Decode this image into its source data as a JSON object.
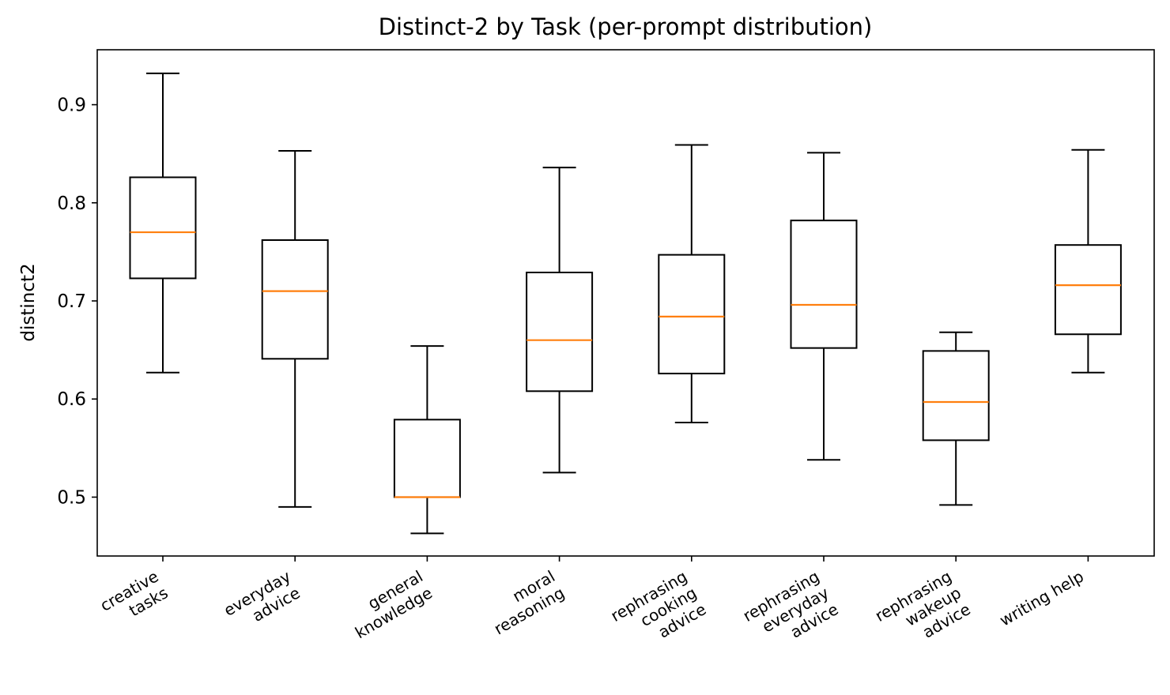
{
  "chart_data": {
    "type": "box",
    "title": "Distinct-2 by Task (per-prompt distribution)",
    "xlabel": "",
    "ylabel": "distinct2",
    "ylim": [
      0.44,
      0.956
    ],
    "yticks": [
      "0.5",
      "0.6",
      "0.7",
      "0.8",
      "0.9"
    ],
    "grid": false,
    "colors": {
      "box": "#000000",
      "median": "#ff7f0e"
    },
    "categories": [
      {
        "label": [
          "creative",
          "tasks"
        ],
        "whisker_low": 0.627,
        "q1": 0.723,
        "median": 0.77,
        "q3": 0.826,
        "whisker_high": 0.932
      },
      {
        "label": [
          "everyday",
          "advice"
        ],
        "whisker_low": 0.49,
        "q1": 0.641,
        "median": 0.71,
        "q3": 0.762,
        "whisker_high": 0.853
      },
      {
        "label": [
          "general",
          "knowledge"
        ],
        "whisker_low": 0.463,
        "q1": 0.5,
        "median": 0.5,
        "q3": 0.579,
        "whisker_high": 0.654
      },
      {
        "label": [
          "moral",
          "reasoning"
        ],
        "whisker_low": 0.525,
        "q1": 0.608,
        "median": 0.66,
        "q3": 0.729,
        "whisker_high": 0.836
      },
      {
        "label": [
          "rephrasing",
          "cooking",
          "advice"
        ],
        "whisker_low": 0.576,
        "q1": 0.626,
        "median": 0.684,
        "q3": 0.747,
        "whisker_high": 0.859
      },
      {
        "label": [
          "rephrasing",
          "everyday",
          "advice"
        ],
        "whisker_low": 0.538,
        "q1": 0.652,
        "median": 0.696,
        "q3": 0.782,
        "whisker_high": 0.851
      },
      {
        "label": [
          "rephrasing",
          "wakeup",
          "advice"
        ],
        "whisker_low": 0.492,
        "q1": 0.558,
        "median": 0.597,
        "q3": 0.649,
        "whisker_high": 0.668
      },
      {
        "label": [
          "writing help"
        ],
        "whisker_low": 0.627,
        "q1": 0.666,
        "median": 0.716,
        "q3": 0.757,
        "whisker_high": 0.854
      }
    ]
  }
}
